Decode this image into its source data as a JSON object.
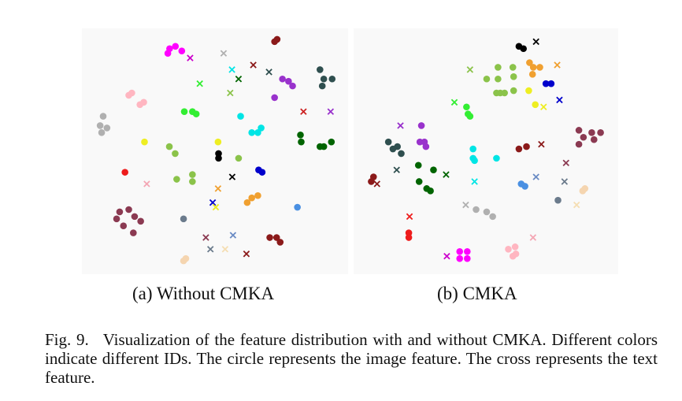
{
  "figure": {
    "number": "Fig. 9.",
    "caption": "Visualization of the feature distribution with and without CMKA. Different colors indicate different IDs. The circle represents the image feature. The cross represents the text feature."
  },
  "panels": [
    {
      "id": "a",
      "label": "(a) Without CMKA",
      "points": [
        {
          "k": "c",
          "x": 0.321,
          "y": 0.06,
          "c": "#ff00ff"
        },
        {
          "k": "c",
          "x": 0.344,
          "y": 0.05,
          "c": "#ff00ff"
        },
        {
          "k": "c",
          "x": 0.369,
          "y": 0.07,
          "c": "#ff00ff"
        },
        {
          "k": "c",
          "x": 0.314,
          "y": 0.08,
          "c": "#ff00ff"
        },
        {
          "k": "x",
          "x": 0.402,
          "y": 0.1,
          "c": "#cc00cc"
        },
        {
          "k": "x",
          "x": 0.534,
          "y": 0.08,
          "c": "#b0b0b0"
        },
        {
          "k": "c",
          "x": 0.735,
          "y": 0.03,
          "c": "#8b1a1a"
        },
        {
          "k": "c",
          "x": 0.745,
          "y": 0.02,
          "c": "#8b1a1a"
        },
        {
          "k": "x",
          "x": 0.651,
          "y": 0.13,
          "c": "#8b1a1a"
        },
        {
          "k": "x",
          "x": 0.567,
          "y": 0.15,
          "c": "#00e5e5"
        },
        {
          "k": "x",
          "x": 0.593,
          "y": 0.19,
          "c": "#006400"
        },
        {
          "k": "x",
          "x": 0.713,
          "y": 0.16,
          "c": "#2f4f4f"
        },
        {
          "k": "x",
          "x": 0.44,
          "y": 0.21,
          "c": "#33ee33"
        },
        {
          "k": "x",
          "x": 0.56,
          "y": 0.25,
          "c": "#8bc34a"
        },
        {
          "k": "c",
          "x": 0.766,
          "y": 0.19,
          "c": "#9932cc"
        },
        {
          "k": "c",
          "x": 0.79,
          "y": 0.2,
          "c": "#9932cc"
        },
        {
          "k": "c",
          "x": 0.806,
          "y": 0.22,
          "c": "#9932cc"
        },
        {
          "k": "c",
          "x": 0.735,
          "y": 0.27,
          "c": "#9932cc"
        },
        {
          "k": "c",
          "x": 0.914,
          "y": 0.15,
          "c": "#2f4f4f"
        },
        {
          "k": "c",
          "x": 0.929,
          "y": 0.19,
          "c": "#2f4f4f"
        },
        {
          "k": "c",
          "x": 0.962,
          "y": 0.19,
          "c": "#2f4f4f"
        },
        {
          "k": "c",
          "x": 0.923,
          "y": 0.22,
          "c": "#2f4f4f"
        },
        {
          "k": "x",
          "x": 0.849,
          "y": 0.33,
          "c": "#cc2222"
        },
        {
          "k": "x",
          "x": 0.956,
          "y": 0.33,
          "c": "#9932cc"
        },
        {
          "k": "c",
          "x": 0.172,
          "y": 0.25,
          "c": "#ffb6c1"
        },
        {
          "k": "c",
          "x": 0.16,
          "y": 0.26,
          "c": "#ffb6c1"
        },
        {
          "k": "c",
          "x": 0.219,
          "y": 0.29,
          "c": "#ffb6c1"
        },
        {
          "k": "c",
          "x": 0.204,
          "y": 0.3,
          "c": "#ffb6c1"
        },
        {
          "k": "c",
          "x": 0.379,
          "y": 0.33,
          "c": "#33ee33"
        },
        {
          "k": "c",
          "x": 0.411,
          "y": 0.33,
          "c": "#33ee33"
        },
        {
          "k": "c",
          "x": 0.426,
          "y": 0.34,
          "c": "#33ee33"
        },
        {
          "k": "c",
          "x": 0.601,
          "y": 0.35,
          "c": "#00e5e5"
        },
        {
          "k": "c",
          "x": 0.059,
          "y": 0.35,
          "c": "#b0b0b0"
        },
        {
          "k": "c",
          "x": 0.047,
          "y": 0.39,
          "c": "#b0b0b0"
        },
        {
          "k": "c",
          "x": 0.074,
          "y": 0.4,
          "c": "#b0b0b0"
        },
        {
          "k": "c",
          "x": 0.053,
          "y": 0.42,
          "c": "#b0b0b0"
        },
        {
          "k": "c",
          "x": 0.669,
          "y": 0.42,
          "c": "#00e5e5"
        },
        {
          "k": "c",
          "x": 0.645,
          "y": 0.42,
          "c": "#00e5e5"
        },
        {
          "k": "c",
          "x": 0.682,
          "y": 0.4,
          "c": "#00e5e5"
        },
        {
          "k": "c",
          "x": 0.837,
          "y": 0.43,
          "c": "#006400"
        },
        {
          "k": "c",
          "x": 0.84,
          "y": 0.46,
          "c": "#006400"
        },
        {
          "k": "c",
          "x": 0.914,
          "y": 0.48,
          "c": "#006400"
        },
        {
          "k": "c",
          "x": 0.929,
          "y": 0.48,
          "c": "#006400"
        },
        {
          "k": "c",
          "x": 0.959,
          "y": 0.46,
          "c": "#006400"
        },
        {
          "k": "c",
          "x": 0.222,
          "y": 0.46,
          "c": "#eeee22"
        },
        {
          "k": "c",
          "x": 0.32,
          "y": 0.48,
          "c": "#8bc34a"
        },
        {
          "k": "c",
          "x": 0.343,
          "y": 0.51,
          "c": "#8bc34a"
        },
        {
          "k": "c",
          "x": 0.512,
          "y": 0.46,
          "c": "#eeee22"
        },
        {
          "k": "c",
          "x": 0.514,
          "y": 0.51,
          "c": "#000000"
        },
        {
          "k": "c",
          "x": 0.514,
          "y": 0.53,
          "c": "#000000"
        },
        {
          "k": "c",
          "x": 0.593,
          "y": 0.53,
          "c": "#8bc34a"
        },
        {
          "k": "c",
          "x": 0.145,
          "y": 0.59,
          "c": "#ee1c1c"
        },
        {
          "k": "c",
          "x": 0.672,
          "y": 0.58,
          "c": "#0000cc"
        },
        {
          "k": "c",
          "x": 0.686,
          "y": 0.59,
          "c": "#0000cc"
        },
        {
          "k": "x",
          "x": 0.568,
          "y": 0.61,
          "c": "#000000"
        },
        {
          "k": "c",
          "x": 0.411,
          "y": 0.63,
          "c": "#8bc34a"
        },
        {
          "k": "c",
          "x": 0.349,
          "y": 0.62,
          "c": "#8bc34a"
        },
        {
          "k": "c",
          "x": 0.411,
          "y": 0.6,
          "c": "#8bc34a"
        },
        {
          "k": "x",
          "x": 0.231,
          "y": 0.64,
          "c": "#f4a6b4"
        },
        {
          "k": "x",
          "x": 0.512,
          "y": 0.66,
          "c": "#f0a030"
        },
        {
          "k": "c",
          "x": 0.669,
          "y": 0.69,
          "c": "#f0a030"
        },
        {
          "k": "c",
          "x": 0.645,
          "y": 0.7,
          "c": "#f0a030"
        },
        {
          "k": "c",
          "x": 0.627,
          "y": 0.72,
          "c": "#f0a030"
        },
        {
          "k": "x",
          "x": 0.491,
          "y": 0.72,
          "c": "#0000cc"
        },
        {
          "k": "x",
          "x": 0.503,
          "y": 0.74,
          "c": "#eeee22"
        },
        {
          "k": "c",
          "x": 0.825,
          "y": 0.74,
          "c": "#4a90e2"
        },
        {
          "k": "c",
          "x": 0.124,
          "y": 0.76,
          "c": "#8b3a52"
        },
        {
          "k": "c",
          "x": 0.16,
          "y": 0.75,
          "c": "#8b3a52"
        },
        {
          "k": "c",
          "x": 0.112,
          "y": 0.79,
          "c": "#8b3a52"
        },
        {
          "k": "c",
          "x": 0.183,
          "y": 0.78,
          "c": "#8b3a52"
        },
        {
          "k": "c",
          "x": 0.207,
          "y": 0.8,
          "c": "#8b3a52"
        },
        {
          "k": "c",
          "x": 0.139,
          "y": 0.82,
          "c": "#8b3a52"
        },
        {
          "k": "c",
          "x": 0.178,
          "y": 0.85,
          "c": "#8b3a52"
        },
        {
          "k": "c",
          "x": 0.376,
          "y": 0.79,
          "c": "#6b7b8c"
        },
        {
          "k": "x",
          "x": 0.464,
          "y": 0.87,
          "c": "#8b3a52"
        },
        {
          "k": "x",
          "x": 0.571,
          "y": 0.86,
          "c": "#6a8bc4"
        },
        {
          "k": "x",
          "x": 0.482,
          "y": 0.92,
          "c": "#6b7b8c"
        },
        {
          "k": "x",
          "x": 0.54,
          "y": 0.92,
          "c": "#f5deb3"
        },
        {
          "k": "x",
          "x": 0.624,
          "y": 0.94,
          "c": "#8b1a1a"
        },
        {
          "k": "c",
          "x": 0.716,
          "y": 0.87,
          "c": "#8b1a1a"
        },
        {
          "k": "c",
          "x": 0.743,
          "y": 0.87,
          "c": "#8b1a1a"
        },
        {
          "k": "c",
          "x": 0.757,
          "y": 0.89,
          "c": "#8b1a1a"
        },
        {
          "k": "c",
          "x": 0.385,
          "y": 0.96,
          "c": "#f5d5b0"
        },
        {
          "k": "c",
          "x": 0.376,
          "y": 0.97,
          "c": "#f5d5b0"
        }
      ]
    },
    {
      "id": "b",
      "label": "(b) CMKA",
      "points": [
        {
          "k": "c",
          "x": 0.631,
          "y": 0.05,
          "c": "#000000"
        },
        {
          "k": "c",
          "x": 0.649,
          "y": 0.06,
          "c": "#000000"
        },
        {
          "k": "x",
          "x": 0.699,
          "y": 0.03,
          "c": "#000000"
        },
        {
          "k": "x",
          "x": 0.437,
          "y": 0.15,
          "c": "#8bc34a"
        },
        {
          "k": "c",
          "x": 0.548,
          "y": 0.14,
          "c": "#8bc34a"
        },
        {
          "k": "c",
          "x": 0.607,
          "y": 0.14,
          "c": "#8bc34a"
        },
        {
          "k": "c",
          "x": 0.61,
          "y": 0.18,
          "c": "#8bc34a"
        },
        {
          "k": "c",
          "x": 0.548,
          "y": 0.19,
          "c": "#8bc34a"
        },
        {
          "k": "c",
          "x": 0.503,
          "y": 0.19,
          "c": "#8bc34a"
        },
        {
          "k": "c",
          "x": 0.61,
          "y": 0.24,
          "c": "#8bc34a"
        },
        {
          "k": "c",
          "x": 0.542,
          "y": 0.25,
          "c": "#8bc34a"
        },
        {
          "k": "c",
          "x": 0.557,
          "y": 0.25,
          "c": "#8bc34a"
        },
        {
          "k": "c",
          "x": 0.574,
          "y": 0.25,
          "c": "#8bc34a"
        },
        {
          "k": "c",
          "x": 0.688,
          "y": 0.14,
          "c": "#f0a030"
        },
        {
          "k": "c",
          "x": 0.714,
          "y": 0.14,
          "c": "#f0a030"
        },
        {
          "k": "c",
          "x": 0.685,
          "y": 0.17,
          "c": "#f0a030"
        },
        {
          "k": "x",
          "x": 0.783,
          "y": 0.13,
          "c": "#f0a030"
        },
        {
          "k": "c",
          "x": 0.673,
          "y": 0.12,
          "c": "#f0a030"
        },
        {
          "k": "c",
          "x": 0.738,
          "y": 0.21,
          "c": "#0000cc"
        },
        {
          "k": "c",
          "x": 0.759,
          "y": 0.21,
          "c": "#0000cc"
        },
        {
          "k": "c",
          "x": 0.67,
          "y": 0.24,
          "c": "#eeee22"
        },
        {
          "k": "x",
          "x": 0.792,
          "y": 0.28,
          "c": "#0000cc"
        },
        {
          "k": "c",
          "x": 0.696,
          "y": 0.3,
          "c": "#eeee22"
        },
        {
          "k": "x",
          "x": 0.729,
          "y": 0.31,
          "c": "#eeee22"
        },
        {
          "k": "x",
          "x": 0.375,
          "y": 0.29,
          "c": "#33ee33"
        },
        {
          "k": "c",
          "x": 0.423,
          "y": 0.31,
          "c": "#33ee33"
        },
        {
          "k": "c",
          "x": 0.429,
          "y": 0.34,
          "c": "#33ee33"
        },
        {
          "k": "c",
          "x": 0.437,
          "y": 0.35,
          "c": "#33ee33"
        },
        {
          "k": "x",
          "x": 0.161,
          "y": 0.39,
          "c": "#9932cc"
        },
        {
          "k": "c",
          "x": 0.244,
          "y": 0.39,
          "c": "#9932cc"
        },
        {
          "k": "c",
          "x": 0.238,
          "y": 0.46,
          "c": "#9932cc"
        },
        {
          "k": "c",
          "x": 0.256,
          "y": 0.46,
          "c": "#9932cc"
        },
        {
          "k": "c",
          "x": 0.262,
          "y": 0.48,
          "c": "#9932cc"
        },
        {
          "k": "c",
          "x": 0.113,
          "y": 0.46,
          "c": "#2f4f4f"
        },
        {
          "k": "c",
          "x": 0.131,
          "y": 0.49,
          "c": "#2f4f4f"
        },
        {
          "k": "c",
          "x": 0.149,
          "y": 0.48,
          "c": "#2f4f4f"
        },
        {
          "k": "c",
          "x": 0.164,
          "y": 0.51,
          "c": "#2f4f4f"
        },
        {
          "k": "x",
          "x": 0.146,
          "y": 0.58,
          "c": "#2f4f4f"
        },
        {
          "k": "c",
          "x": 0.232,
          "y": 0.56,
          "c": "#006400"
        },
        {
          "k": "c",
          "x": 0.292,
          "y": 0.58,
          "c": "#006400"
        },
        {
          "k": "x",
          "x": 0.342,
          "y": 0.6,
          "c": "#006400"
        },
        {
          "k": "c",
          "x": 0.235,
          "y": 0.63,
          "c": "#006400"
        },
        {
          "k": "c",
          "x": 0.265,
          "y": 0.66,
          "c": "#006400"
        },
        {
          "k": "c",
          "x": 0.28,
          "y": 0.67,
          "c": "#006400"
        },
        {
          "k": "c",
          "x": 0.045,
          "y": 0.63,
          "c": "#8b1a1a"
        },
        {
          "k": "c",
          "x": 0.054,
          "y": 0.61,
          "c": "#8b1a1a"
        },
        {
          "k": "x",
          "x": 0.068,
          "y": 0.64,
          "c": "#8b1a1a"
        },
        {
          "k": "c",
          "x": 0.449,
          "y": 0.49,
          "c": "#00e5e5"
        },
        {
          "k": "c",
          "x": 0.449,
          "y": 0.53,
          "c": "#00e5e5"
        },
        {
          "k": "c",
          "x": 0.455,
          "y": 0.54,
          "c": "#00e5e5"
        },
        {
          "k": "c",
          "x": 0.542,
          "y": 0.53,
          "c": "#00e5e5"
        },
        {
          "k": "x",
          "x": 0.455,
          "y": 0.63,
          "c": "#00e5e5"
        },
        {
          "k": "c",
          "x": 0.631,
          "y": 0.49,
          "c": "#8b1a1a"
        },
        {
          "k": "c",
          "x": 0.661,
          "y": 0.48,
          "c": "#8b1a1a"
        },
        {
          "k": "x",
          "x": 0.72,
          "y": 0.47,
          "c": "#8b1a1a"
        },
        {
          "k": "c",
          "x": 0.869,
          "y": 0.41,
          "c": "#8b3a52"
        },
        {
          "k": "c",
          "x": 0.92,
          "y": 0.42,
          "c": "#8b3a52"
        },
        {
          "k": "c",
          "x": 0.955,
          "y": 0.42,
          "c": "#8b3a52"
        },
        {
          "k": "c",
          "x": 0.887,
          "y": 0.44,
          "c": "#8b3a52"
        },
        {
          "k": "c",
          "x": 0.929,
          "y": 0.45,
          "c": "#8b3a52"
        },
        {
          "k": "c",
          "x": 0.869,
          "y": 0.47,
          "c": "#8b3a52"
        },
        {
          "k": "x",
          "x": 0.818,
          "y": 0.55,
          "c": "#8b3a52"
        },
        {
          "k": "c",
          "x": 0.64,
          "y": 0.64,
          "c": "#4a90e2"
        },
        {
          "k": "c",
          "x": 0.655,
          "y": 0.65,
          "c": "#4a90e2"
        },
        {
          "k": "x",
          "x": 0.699,
          "y": 0.61,
          "c": "#6a8bc4"
        },
        {
          "k": "x",
          "x": 0.812,
          "y": 0.63,
          "c": "#6b7b8c"
        },
        {
          "k": "c",
          "x": 0.893,
          "y": 0.66,
          "c": "#f5d5b0"
        },
        {
          "k": "c",
          "x": 0.884,
          "y": 0.67,
          "c": "#f5d5b0"
        },
        {
          "k": "c",
          "x": 0.786,
          "y": 0.71,
          "c": "#6b7b8c"
        },
        {
          "k": "x",
          "x": 0.86,
          "y": 0.73,
          "c": "#f5deb3"
        },
        {
          "k": "x",
          "x": 0.42,
          "y": 0.73,
          "c": "#b0b0b0"
        },
        {
          "k": "c",
          "x": 0.461,
          "y": 0.75,
          "c": "#b0b0b0"
        },
        {
          "k": "c",
          "x": 0.503,
          "y": 0.76,
          "c": "#b0b0b0"
        },
        {
          "k": "c",
          "x": 0.527,
          "y": 0.78,
          "c": "#b0b0b0"
        },
        {
          "k": "x",
          "x": 0.197,
          "y": 0.78,
          "c": "#ee1c1c"
        },
        {
          "k": "c",
          "x": 0.194,
          "y": 0.85,
          "c": "#ee1c1c"
        },
        {
          "k": "c",
          "x": 0.194,
          "y": 0.87,
          "c": "#ee1c1c"
        },
        {
          "k": "x",
          "x": 0.345,
          "y": 0.95,
          "c": "#cc00cc"
        },
        {
          "k": "c",
          "x": 0.396,
          "y": 0.93,
          "c": "#ff00ff"
        },
        {
          "k": "c",
          "x": 0.426,
          "y": 0.93,
          "c": "#ff00ff"
        },
        {
          "k": "c",
          "x": 0.396,
          "y": 0.96,
          "c": "#ff00ff"
        },
        {
          "k": "c",
          "x": 0.426,
          "y": 0.96,
          "c": "#ff00ff"
        },
        {
          "k": "x",
          "x": 0.687,
          "y": 0.87,
          "c": "#f4a6b4"
        },
        {
          "k": "c",
          "x": 0.589,
          "y": 0.92,
          "c": "#ffb6c1"
        },
        {
          "k": "c",
          "x": 0.616,
          "y": 0.91,
          "c": "#ffb6c1"
        },
        {
          "k": "c",
          "x": 0.619,
          "y": 0.94,
          "c": "#ffb6c1"
        },
        {
          "k": "c",
          "x": 0.607,
          "y": 0.95,
          "c": "#ffb6c1"
        }
      ]
    }
  ]
}
